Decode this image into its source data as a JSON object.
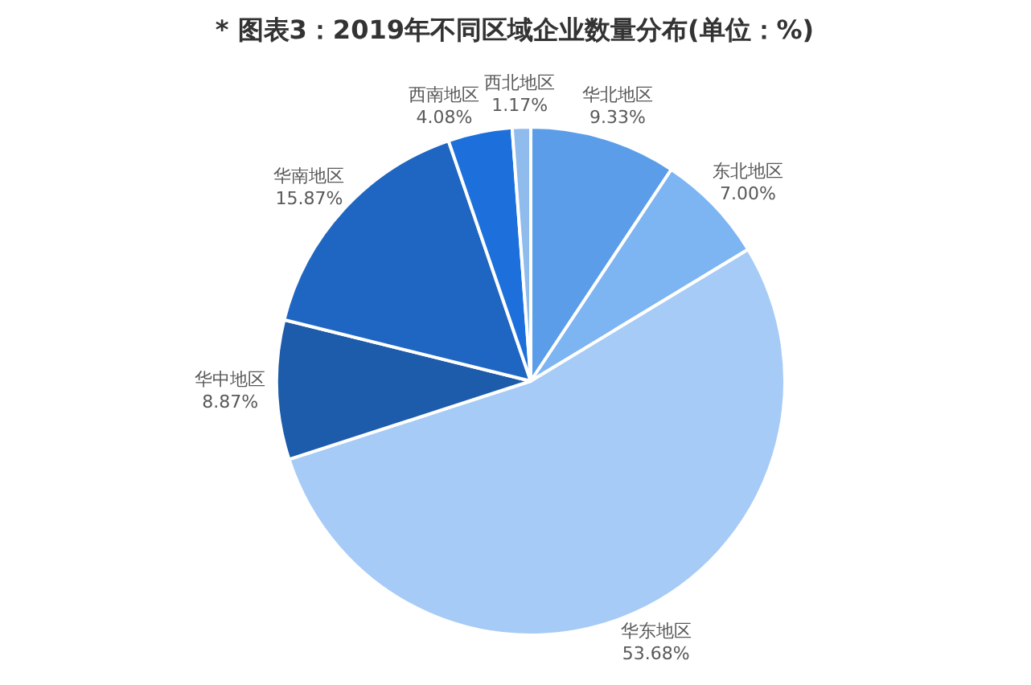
{
  "chart_data": {
    "type": "pie",
    "title": "* 图表3：2019年不同区域企业数量分布(单位：%)",
    "categories": [
      "华北地区",
      "东北地区",
      "华东地区",
      "华中地区",
      "华南地区",
      "西南地区",
      "西北地区"
    ],
    "values": [
      9.33,
      7.0,
      53.68,
      8.87,
      15.87,
      4.08,
      1.17
    ],
    "value_labels": [
      "9.33%",
      "7.00%",
      "53.68%",
      "8.87%",
      "15.87%",
      "4.08%",
      "1.17%"
    ],
    "colors": [
      "#5b9de8",
      "#7db4f2",
      "#a6cbf6",
      "#1d5bab",
      "#1f66c2",
      "#1d6fdb",
      "#8fbbed"
    ]
  }
}
